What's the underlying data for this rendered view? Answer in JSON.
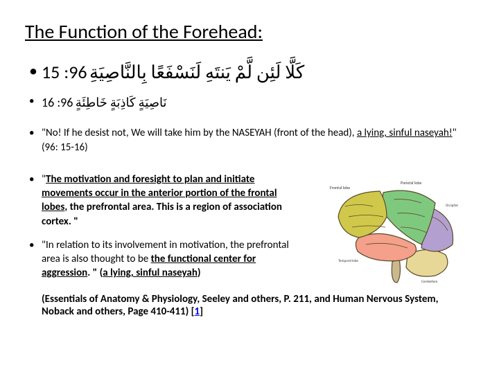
{
  "title": "The Function of the Forehead:",
  "bullets": {
    "verse1_arabic": "كَلَّا لَئِن لَّمْ يَنتَهِ لَنَسْفَعًا بِالنَّاصِيَةِ",
    "verse1_ref": "96: 15",
    "verse2_arabic": "نَاصِيَةٍ كَاذِبَةٍ خَاطِئَةٍ",
    "verse2_ref": "96: 16",
    "translation_pre": "\"No! If he desist not, We will take him by the NASEYAH (front of the head), ",
    "translation_underlined": "a lying, sinful naseyah!",
    "translation_post": "\" (96: 15-16)",
    "motivation_pre": "\"",
    "motivation_u1": "The motivation and foresight to plan and initiate movements occur in the anterior portion of the frontal lobes",
    "motivation_mid1": ", the prefrontal area.  This is a region of association cortex. \"",
    "aggression_pre": "\"In relation to its involvement in motivation, the prefrontal area is also thought to be ",
    "aggression_u1": "the functional center for aggression",
    "aggression_mid": ". \" (",
    "aggression_u2": "a lying, sinful naseyah",
    "aggression_post": ")"
  },
  "citation": {
    "text": "(Essentials of Anatomy & Physiology, Seeley and others, P. 211, and Human Nervous System, Noback and others, Page 410-411) [",
    "link": "1",
    "after": "]"
  },
  "brain": {
    "lobes": {
      "frontal": "#d0c84a",
      "parietal": "#7fc97f",
      "occipital": "#b3a0d0",
      "temporal": "#f4a08a",
      "cerebellum": "#e8d898",
      "brainstem": "#c9b98c"
    },
    "outline": "#5a4a2a"
  }
}
